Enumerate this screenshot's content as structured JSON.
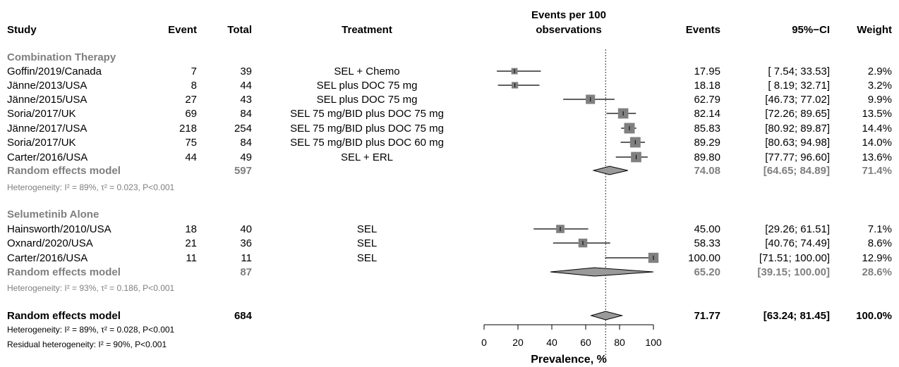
{
  "chart_data": {
    "type": "forest",
    "headers": {
      "study": "Study",
      "event": "Event",
      "total": "Total",
      "treatment": "Treatment",
      "plot_line1": "Events per 100",
      "plot_line2": "observations",
      "events": "Events",
      "ci": "95%−CI",
      "weight": "Weight"
    },
    "xlabel": "Prevalence, %",
    "xlim": [
      0,
      100
    ],
    "xticks": [
      0,
      20,
      40,
      60,
      80,
      100
    ],
    "reference_line": 71.77,
    "colors": {
      "square": "#808080",
      "summary_text": "#7f7f7f",
      "diamond": "#9a9a9a"
    },
    "groups": [
      {
        "name": "Combination Therapy",
        "studies": [
          {
            "study": "Goffin/2019/Canada",
            "event": "7",
            "total": "39",
            "treatment": "SEL + Chemo",
            "est": 17.95,
            "lo": 7.54,
            "hi": 33.53,
            "events": "17.95",
            "ci": "[ 7.54;  33.53]",
            "weight": "2.9%",
            "w": 2.9
          },
          {
            "study": "Jänne/2013/USA",
            "event": "8",
            "total": "44",
            "treatment": "SEL plus DOC 75 mg",
            "est": 18.18,
            "lo": 8.19,
            "hi": 32.71,
            "events": "18.18",
            "ci": "[ 8.19;  32.71]",
            "weight": "3.2%",
            "w": 3.2
          },
          {
            "study": "Jänne/2015/USA",
            "event": "27",
            "total": "43",
            "treatment": "SEL plus DOC 75 mg",
            "est": 62.79,
            "lo": 46.73,
            "hi": 77.02,
            "events": "62.79",
            "ci": "[46.73;  77.02]",
            "weight": "9.9%",
            "w": 9.9
          },
          {
            "study": "Soria/2017/UK",
            "event": "69",
            "total": "84",
            "treatment": "SEL 75 mg/BID plus DOC 75 mg",
            "est": 82.14,
            "lo": 72.26,
            "hi": 89.65,
            "events": "82.14",
            "ci": "[72.26;  89.65]",
            "weight": "13.5%",
            "w": 13.5
          },
          {
            "study": "Jänne/2017/USA",
            "event": "218",
            "total": "254",
            "treatment": "SEL 75 mg/BID plus DOC 75 mg",
            "est": 85.83,
            "lo": 80.92,
            "hi": 89.87,
            "events": "85.83",
            "ci": "[80.92;  89.87]",
            "weight": "14.4%",
            "w": 14.4
          },
          {
            "study": "Soria/2017/UK",
            "event": "75",
            "total": "84",
            "treatment": "SEL 75 mg/BID plus DOC 60 mg",
            "est": 89.29,
            "lo": 80.63,
            "hi": 94.98,
            "events": "89.29",
            "ci": "[80.63;  94.98]",
            "weight": "14.0%",
            "w": 14.0
          },
          {
            "study": "Carter/2016/USA",
            "event": "44",
            "total": "49",
            "treatment": "SEL + ERL",
            "est": 89.8,
            "lo": 77.77,
            "hi": 96.6,
            "events": "89.80",
            "ci": "[77.77;  96.60]",
            "weight": "13.6%",
            "w": 13.6
          }
        ],
        "summary": {
          "label": "Random effects model",
          "total": "597",
          "est": 74.08,
          "lo": 64.65,
          "hi": 84.89,
          "events": "74.08",
          "ci": "[64.65;  84.89]",
          "weight": "71.4%"
        },
        "heterogeneity": "Heterogeneity: I² = 89%, τ² = 0.023, P<0.001"
      },
      {
        "name": "Selumetinib Alone",
        "studies": [
          {
            "study": "Hainsworth/2010/USA",
            "event": "18",
            "total": "40",
            "treatment": "SEL",
            "est": 45.0,
            "lo": 29.26,
            "hi": 61.51,
            "events": "45.00",
            "ci": "[29.26;  61.51]",
            "weight": "7.1%",
            "w": 7.1
          },
          {
            "study": "Oxnard/2020/USA",
            "event": "21",
            "total": "36",
            "treatment": "SEL",
            "est": 58.33,
            "lo": 40.76,
            "hi": 74.49,
            "events": "58.33",
            "ci": "[40.76;  74.49]",
            "weight": "8.6%",
            "w": 8.6
          },
          {
            "study": "Carter/2016/USA",
            "event": "11",
            "total": "11",
            "treatment": "SEL",
            "est": 100.0,
            "lo": 71.51,
            "hi": 100.0,
            "events": "100.00",
            "ci": "[71.51; 100.00]",
            "weight": "12.9%",
            "w": 12.9
          }
        ],
        "summary": {
          "label": "Random effects model",
          "total": "87",
          "est": 65.2,
          "lo": 39.15,
          "hi": 100.0,
          "events": "65.20",
          "ci": "[39.15; 100.00]",
          "weight": "28.6%"
        },
        "heterogeneity": "Heterogeneity: I² = 93%, τ² = 0.186, P<0.001"
      }
    ],
    "overall": {
      "label": "Random effects model",
      "total": "684",
      "est": 71.77,
      "lo": 63.24,
      "hi": 81.45,
      "events": "71.77",
      "ci": "[63.24;  81.45]",
      "weight": "100.0%",
      "heterogeneity": "Heterogeneity: I² = 89%, τ² = 0.028, P<0.001",
      "residual": "Residual heterogeneity: I² = 90%, P<0.001"
    }
  }
}
